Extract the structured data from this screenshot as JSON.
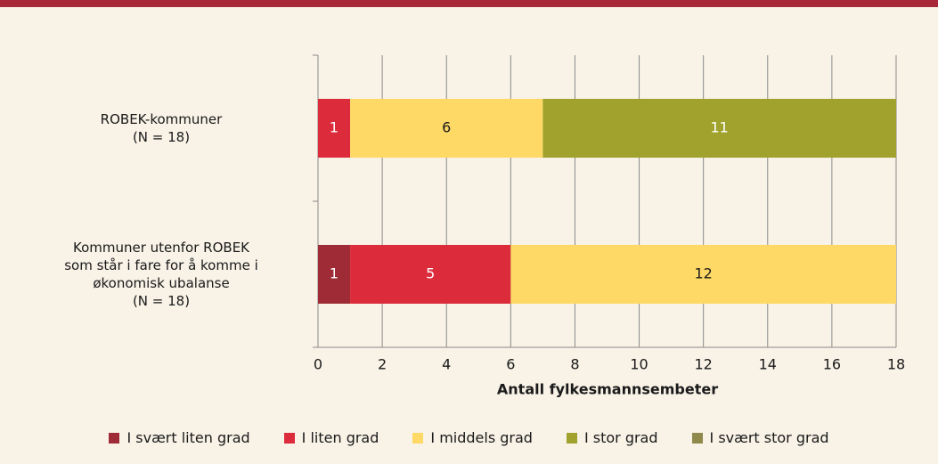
{
  "chart_data": {
    "type": "stacked-barh",
    "categories": [
      "ROBEK-kommuner\n(N = 18)",
      "Kommuner utenfor ROBEK\nsom står i fare for å komme i\nøkonomisk ubalanse\n(N = 18)"
    ],
    "series": [
      {
        "name": "I svært liten grad",
        "color": "#9e2b36",
        "values": [
          0,
          1
        ]
      },
      {
        "name": "I liten grad",
        "color": "#dc2c3c",
        "values": [
          1,
          5
        ]
      },
      {
        "name": "I middels grad",
        "color": "#ffd966",
        "values": [
          6,
          12
        ]
      },
      {
        "name": "I stor grad",
        "color": "#a1a22d",
        "values": [
          11,
          0
        ]
      },
      {
        "name": "I svært stor grad",
        "color": "#8f8a4c",
        "values": [
          0,
          0
        ]
      }
    ],
    "xlabel": "Antall fylkesmannsembeter",
    "xlim": [
      0,
      18
    ],
    "xticks": [
      0,
      2,
      4,
      6,
      8,
      10,
      12,
      14,
      16,
      18
    ],
    "grid": true,
    "legend": "bottom"
  }
}
